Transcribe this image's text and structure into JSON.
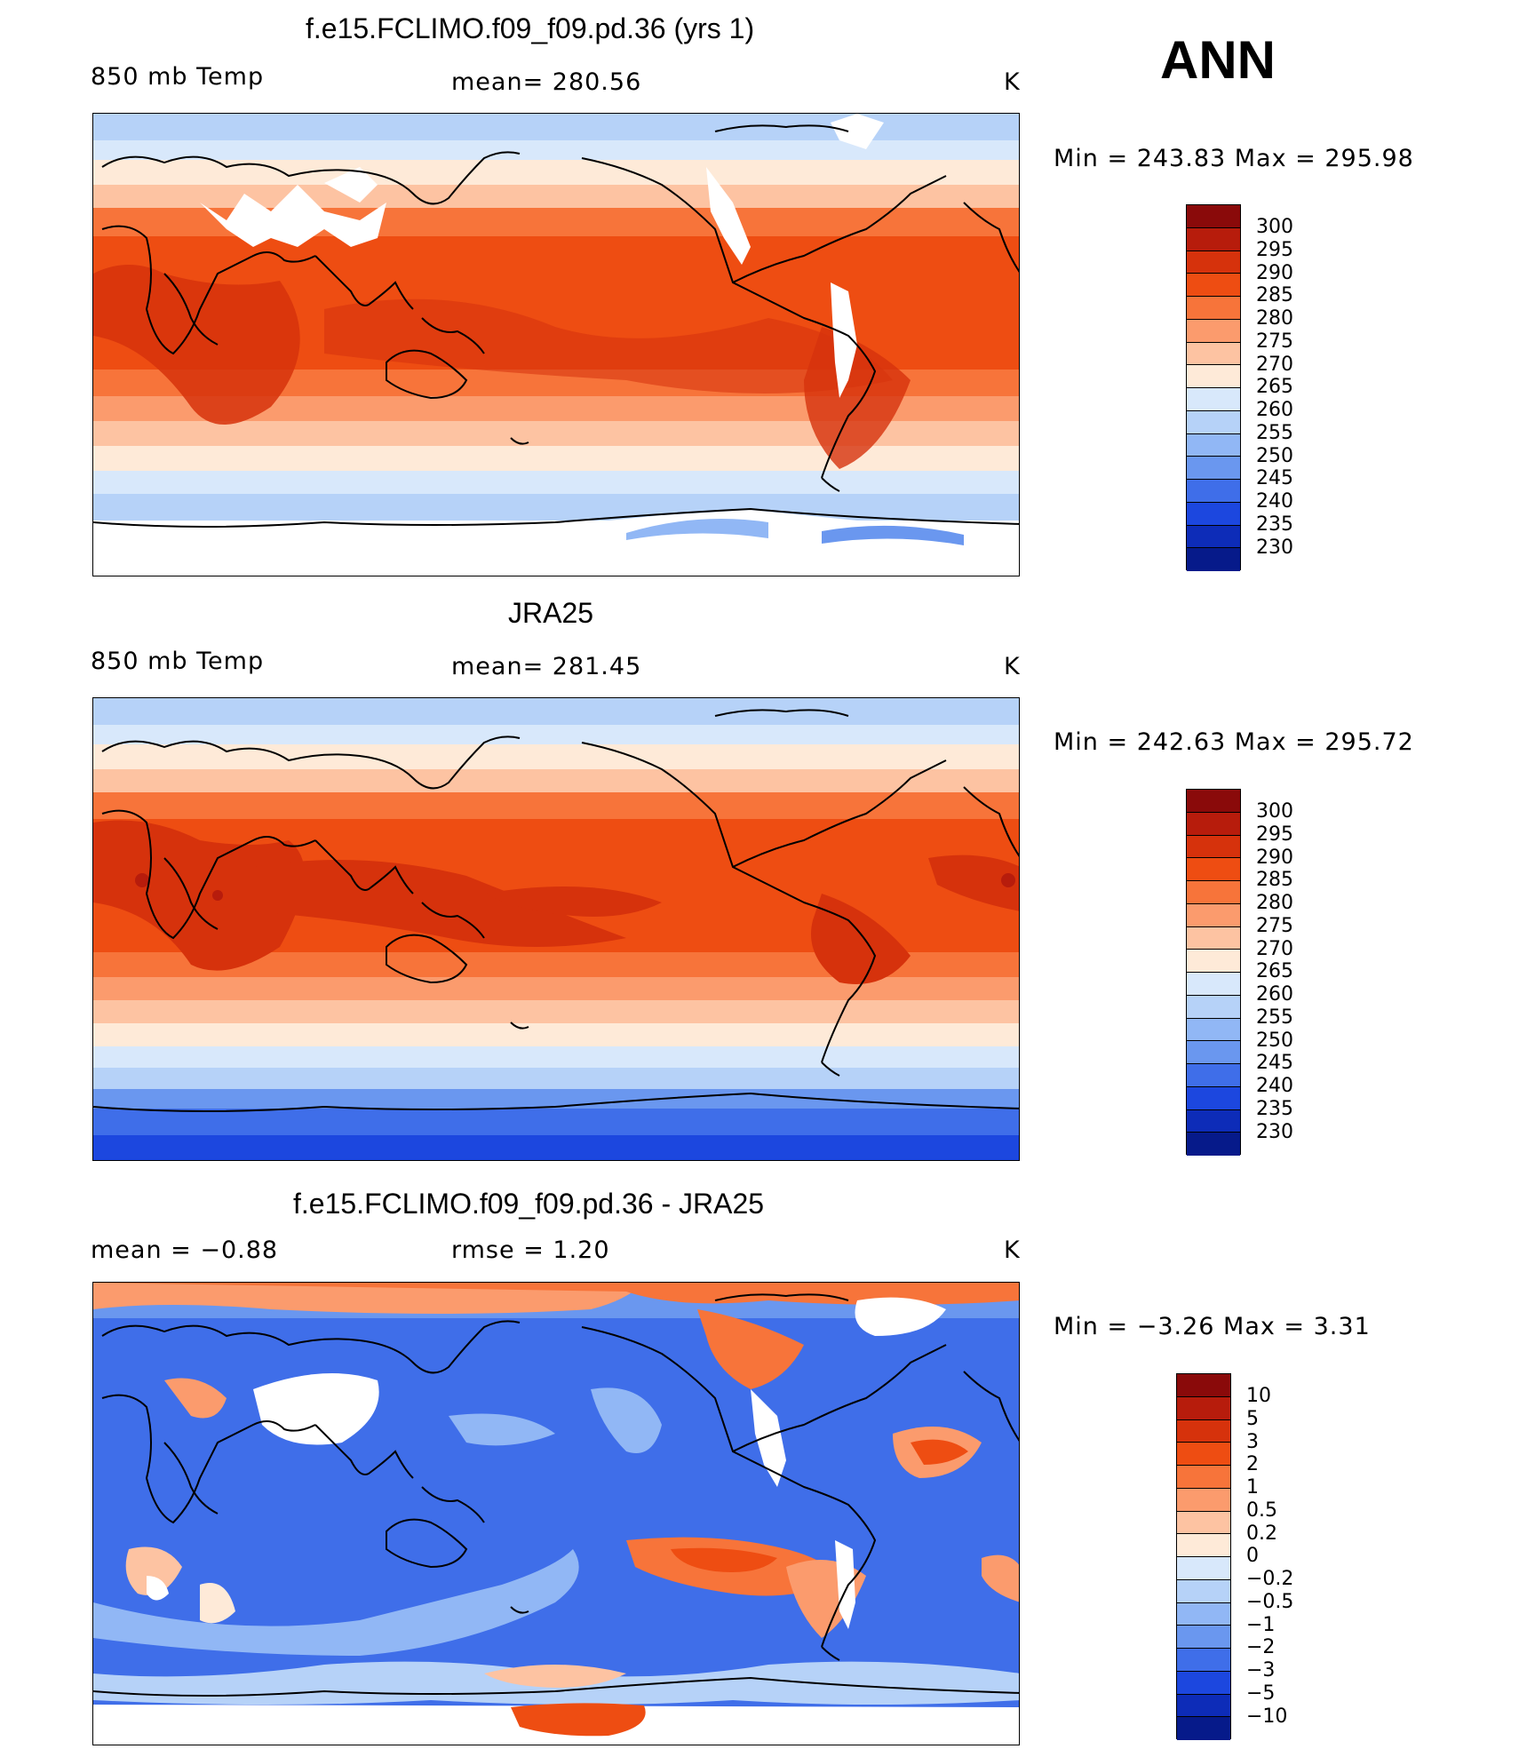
{
  "season": "ANN",
  "panels": [
    {
      "title": "f.e15.FCLIMO.f09_f09.pd.36 (yrs 1)",
      "left_label": "850 mb Temp",
      "center_label": "mean= 280.56",
      "unit": "K",
      "range_label": "Min = 243.83 Max = 295.98",
      "colorbar": {
        "labels": [
          "300",
          "295",
          "290",
          "285",
          "280",
          "275",
          "270",
          "265",
          "260",
          "255",
          "250",
          "245",
          "240",
          "235",
          "230"
        ],
        "colors": [
          "#8a0a0a",
          "#b71c0c",
          "#d6320c",
          "#ee4d12",
          "#f7743a",
          "#fb9b6d",
          "#fdc3a2",
          "#feead8",
          "#d8e8fb",
          "#b6d2f8",
          "#91b7f5",
          "#6a97ef",
          "#3f6ee9",
          "#1c47df",
          "#0d2cb8",
          "#061a8a"
        ]
      }
    },
    {
      "title": "JRA25",
      "left_label": "850 mb Temp",
      "center_label": "mean= 281.45",
      "unit": "K",
      "range_label": "Min = 242.63 Max = 295.72",
      "colorbar": {
        "labels": [
          "300",
          "295",
          "290",
          "285",
          "280",
          "275",
          "270",
          "265",
          "260",
          "255",
          "250",
          "245",
          "240",
          "235",
          "230"
        ],
        "colors": [
          "#8a0a0a",
          "#b71c0c",
          "#d6320c",
          "#ee4d12",
          "#f7743a",
          "#fb9b6d",
          "#fdc3a2",
          "#feead8",
          "#d8e8fb",
          "#b6d2f8",
          "#91b7f5",
          "#6a97ef",
          "#3f6ee9",
          "#1c47df",
          "#0d2cb8",
          "#061a8a"
        ]
      }
    },
    {
      "title": "f.e15.FCLIMO.f09_f09.pd.36 - JRA25",
      "left_label": "mean =   −0.88",
      "center_label": "rmse =    1.20",
      "unit": "K",
      "range_label": "Min =  −3.26 Max =    3.31",
      "colorbar": {
        "labels": [
          "10",
          "5",
          "3",
          "2",
          "1",
          "0.5",
          "0.2",
          "0",
          "−0.2",
          "−0.5",
          "−1",
          "−2",
          "−3",
          "−5",
          "−10"
        ],
        "colors": [
          "#8a0a0a",
          "#b71c0c",
          "#d6320c",
          "#ee4d12",
          "#f7743a",
          "#fb9b6d",
          "#fdc3a2",
          "#feead8",
          "#d8e8fb",
          "#b6d2f8",
          "#91b7f5",
          "#6a97ef",
          "#3f6ee9",
          "#1c47df",
          "#0d2cb8",
          "#061a8a"
        ]
      }
    }
  ]
}
